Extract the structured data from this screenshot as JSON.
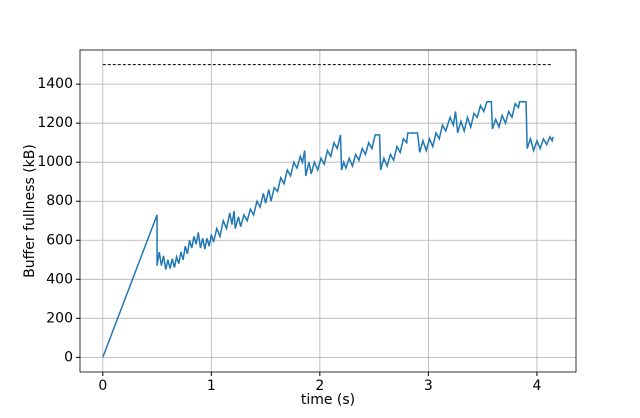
{
  "chart_data": {
    "type": "line",
    "xlabel": "time (s)",
    "ylabel": "Buffer fullness (kB)",
    "xlim": [
      -0.21,
      4.36
    ],
    "ylim": [
      -75,
      1575
    ],
    "xticks": [
      0,
      1,
      2,
      3,
      4
    ],
    "yticks": [
      0,
      200,
      400,
      600,
      800,
      1000,
      1200,
      1400
    ],
    "grid": true,
    "series": [
      {
        "color": "#000000",
        "linestyle": "dashed",
        "x": [
          0,
          4.13
        ],
        "values": [
          1500,
          1500
        ]
      },
      {
        "color": "#1f77b4",
        "linestyle": "solid",
        "x": [
          0,
          0.5,
          0.5,
          0.52,
          0.54,
          0.56,
          0.58,
          0.6,
          0.62,
          0.64,
          0.66,
          0.68,
          0.7,
          0.72,
          0.74,
          0.76,
          0.78,
          0.8,
          0.82,
          0.84,
          0.86,
          0.88,
          0.9,
          0.92,
          0.94,
          0.96,
          0.98,
          1.0,
          1.02,
          1.05,
          1.08,
          1.11,
          1.14,
          1.17,
          1.19,
          1.21,
          1.22,
          1.25,
          1.27,
          1.3,
          1.33,
          1.36,
          1.39,
          1.42,
          1.45,
          1.48,
          1.5,
          1.53,
          1.55,
          1.58,
          1.61,
          1.64,
          1.67,
          1.7,
          1.73,
          1.76,
          1.79,
          1.82,
          1.84,
          1.86,
          1.87,
          1.9,
          1.92,
          1.95,
          1.98,
          2.01,
          2.04,
          2.07,
          2.1,
          2.13,
          2.16,
          2.19,
          2.2,
          2.22,
          2.24,
          2.27,
          2.3,
          2.33,
          2.36,
          2.39,
          2.42,
          2.45,
          2.48,
          2.51,
          2.55,
          2.56,
          2.59,
          2.62,
          2.65,
          2.68,
          2.71,
          2.74,
          2.77,
          2.8,
          2.81,
          2.9,
          2.92,
          2.95,
          2.98,
          3.01,
          3.04,
          3.07,
          3.1,
          3.13,
          3.16,
          3.2,
          3.23,
          3.25,
          3.27,
          3.3,
          3.33,
          3.36,
          3.39,
          3.42,
          3.45,
          3.48,
          3.51,
          3.54,
          3.58,
          3.59,
          3.62,
          3.65,
          3.68,
          3.71,
          3.74,
          3.77,
          3.8,
          3.83,
          3.84,
          3.9,
          3.91,
          3.94,
          3.97,
          4.0,
          4.03,
          4.06,
          4.09,
          4.12,
          4.14,
          4.15
        ],
        "values": [
          0,
          730,
          470,
          540,
          470,
          520,
          450,
          500,
          455,
          505,
          460,
          515,
          480,
          540,
          500,
          570,
          530,
          600,
          560,
          620,
          580,
          640,
          560,
          610,
          555,
          610,
          570,
          630,
          590,
          660,
          620,
          700,
          660,
          740,
          680,
          750,
          660,
          720,
          670,
          730,
          700,
          760,
          730,
          800,
          770,
          840,
          790,
          860,
          800,
          870,
          850,
          920,
          890,
          960,
          930,
          1000,
          970,
          1030,
          1000,
          1060,
          930,
          1000,
          940,
          1000,
          960,
          1020,
          990,
          1060,
          1030,
          1100,
          1070,
          1140,
          960,
          1000,
          970,
          1020,
          980,
          1040,
          1010,
          1070,
          1040,
          1100,
          1070,
          1140,
          1140,
          960,
          1020,
          980,
          1040,
          1010,
          1080,
          1050,
          1120,
          1100,
          1150,
          1150,
          1050,
          1110,
          1060,
          1120,
          1080,
          1150,
          1120,
          1190,
          1160,
          1230,
          1190,
          1260,
          1150,
          1210,
          1160,
          1230,
          1180,
          1250,
          1230,
          1290,
          1260,
          1310,
          1310,
          1170,
          1220,
          1180,
          1240,
          1200,
          1260,
          1230,
          1300,
          1280,
          1310,
          1310,
          1070,
          1120,
          1060,
          1110,
          1070,
          1120,
          1090,
          1130,
          1110,
          1130
        ]
      }
    ]
  }
}
